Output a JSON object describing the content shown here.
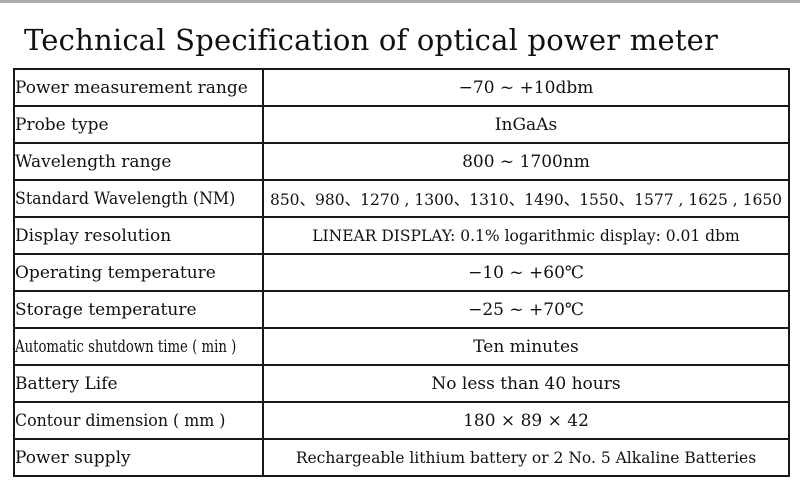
{
  "page": {
    "title": "Technical Specification of optical power meter",
    "top_bar_color": "#a9aeb4",
    "border_color": "#181818",
    "text_color": "#111111"
  },
  "table": {
    "rows": [
      {
        "label": "Power measurement range",
        "value": "−70 ~ +10dbm"
      },
      {
        "label": "Probe type",
        "value": "InGaAs"
      },
      {
        "label": "Wavelength range",
        "value": "800 ~ 1700nm"
      },
      {
        "label": "Standard Wavelength (NM)",
        "value": "850、980、1270 , 1300、1310、1490、1550、1577 , 1625 , 1650"
      },
      {
        "label": "Display resolution",
        "value": "LINEAR DISPLAY: 0.1% logarithmic display: 0.01 dbm"
      },
      {
        "label": "Operating temperature",
        "value": "−10 ~ +60℃"
      },
      {
        "label": "Storage temperature",
        "value": "−25 ~ +70℃"
      },
      {
        "label": "Automatic shutdown time ( min )",
        "value": "Ten minutes"
      },
      {
        "label": "Battery Life",
        "value": "No less than 40 hours"
      },
      {
        "label": "Contour dimension ( mm )",
        "value": "180 × 89 × 42"
      },
      {
        "label": "Power supply",
        "value": "Rechargeable lithium battery or 2 No. 5 Alkaline Batteries"
      }
    ]
  }
}
